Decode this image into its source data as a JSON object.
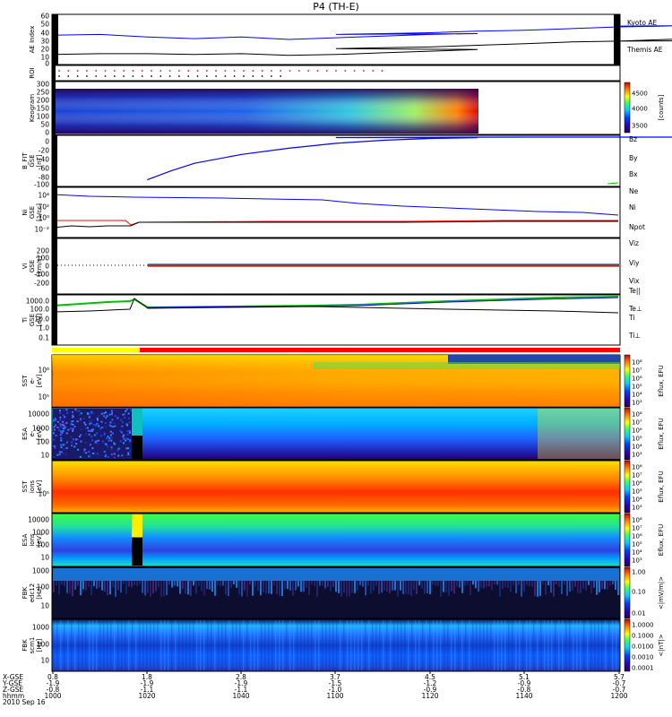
{
  "title": "P4 (TH-E)",
  "colors": {
    "blue": "#0000ff",
    "red": "#ff0000",
    "green": "#00c000",
    "black": "#000000",
    "purple": "#7b2a7b",
    "yellow": "#ffff00"
  },
  "chart_data": [
    {
      "panel": "ae",
      "type": "line",
      "ylabel": "AE Index",
      "yticks": [
        "60",
        "50",
        "40",
        "30",
        "20",
        "10",
        "0"
      ],
      "ylim": [
        0,
        60
      ],
      "series": [
        {
          "name": "Kyoto AE",
          "color": "#0000ff",
          "x": [
            1000,
            1010,
            1020,
            1030,
            1040,
            1050,
            1060,
            1070,
            1080,
            1090,
            1100,
            1110,
            1120,
            1130,
            1140,
            1150,
            1160,
            1170,
            1180,
            1190,
            1195,
            1200
          ],
          "values": [
            35,
            36,
            33,
            31,
            33,
            30,
            32,
            34,
            36,
            37,
            36,
            37,
            38,
            40,
            41,
            43,
            45,
            46,
            48,
            50,
            47,
            46
          ]
        },
        {
          "name": "Themis AE",
          "color": "#000000",
          "x": [
            1000,
            1010,
            1020,
            1030,
            1040,
            1050,
            1060,
            1070,
            1080,
            1090,
            1100,
            1110,
            1120,
            1130,
            1140,
            1150,
            1160,
            1170,
            1180,
            1190,
            1195,
            1200
          ],
          "values": [
            12,
            13,
            13,
            12,
            13,
            11,
            12,
            14,
            16,
            18,
            19,
            20,
            21,
            23,
            25,
            27,
            28,
            30,
            32,
            34,
            29,
            28
          ]
        }
      ]
    },
    {
      "panel": "roi",
      "type": "scatter",
      "ylabel": "ROI"
    },
    {
      "panel": "keogram",
      "type": "heatmap",
      "ylabel": "Keogram",
      "yticks": [
        "300",
        "250",
        "200",
        "150",
        "100",
        "50",
        "0"
      ],
      "colorbar_ticks": [
        "4500",
        "4000",
        "3500"
      ],
      "colorbar_unit": "[counts]"
    },
    {
      "panel": "bfield",
      "type": "line",
      "ylabel": "B_FIT\nGSE\n[nT]",
      "yticks": [
        "0",
        "-20",
        "-40",
        "-60",
        "-80",
        "-100"
      ],
      "ylim": [
        -110,
        5
      ],
      "series": [
        {
          "name": "Bz",
          "color": "#ff0000"
        },
        {
          "name": "By",
          "color": "#00c000"
        },
        {
          "name": "Bx",
          "color": "#0000ff",
          "x": [
            1020,
            1025,
            1030,
            1040,
            1050,
            1060,
            1070,
            1080,
            1090,
            1100,
            1120,
            1140,
            1160,
            1180,
            1200
          ],
          "values": [
            -95,
            -75,
            -58,
            -38,
            -24,
            -13,
            -6,
            -2,
            -0.5,
            0,
            0.5,
            1,
            1,
            1,
            1
          ]
        }
      ]
    },
    {
      "panel": "density",
      "type": "line",
      "ylabel": "Ni\nGSE\n[1/cc]",
      "yticks": [
        "10⁴",
        "10²",
        "10⁰",
        "10⁻²"
      ],
      "series": [
        {
          "name": "Ne",
          "color": "#ff0000"
        },
        {
          "name": "Ni",
          "color": "#000000"
        },
        {
          "name": "Npot",
          "color": "#0000ff"
        }
      ]
    },
    {
      "panel": "velocity",
      "type": "line",
      "ylabel": "Vi\nGSE\n[km/s]",
      "yticks": [
        "200",
        "100",
        "0",
        "-100",
        "-200"
      ],
      "ylim": [
        -300,
        250
      ],
      "series": [
        {
          "name": "Viz",
          "color": "#ff0000"
        },
        {
          "name": "Viy",
          "color": "#00c000"
        },
        {
          "name": "Vix",
          "color": "#0000ff"
        }
      ]
    },
    {
      "panel": "temperature",
      "type": "line",
      "ylabel": "Ti\nGSE\n[eV]",
      "yticks": [
        "1000.0",
        "100.0",
        "10.0",
        "1.0",
        "0.1"
      ],
      "series": [
        {
          "name": "Te||",
          "color": "#000000"
        },
        {
          "name": "Te⊥",
          "color": "#ff0000"
        },
        {
          "name": "Ti",
          "color": "#00c000"
        },
        {
          "name": "Ti⊥",
          "color": "#0000ff"
        }
      ]
    },
    {
      "panel": "sst_e",
      "type": "heatmap",
      "ylabel": "SST\ne-\n[eV]",
      "yticks": [
        "10⁶",
        "10⁵"
      ],
      "colorbar_ticks": [
        "10⁸",
        "10⁷",
        "10⁶",
        "10⁵",
        "10⁴",
        "10³"
      ],
      "colorbar_unit": "Eflux, EFU"
    },
    {
      "panel": "esa_e",
      "type": "heatmap",
      "ylabel": "ESA\ne-\n[eV]",
      "yticks": [
        "10000",
        "1000",
        "100",
        "10"
      ],
      "colorbar_ticks": [
        "10⁸",
        "10⁷",
        "10⁶",
        "10⁵",
        "10⁴",
        "10³"
      ],
      "colorbar_unit": "Eflux, EFU"
    },
    {
      "panel": "sst_i",
      "type": "heatmap",
      "ylabel": "SST\nions\n[eV]",
      "yticks": [
        "10⁵"
      ],
      "colorbar_ticks": [
        "10⁸",
        "10⁷",
        "10⁶",
        "10⁵",
        "10⁴",
        "10³"
      ],
      "colorbar_unit": "Eflux, EFU"
    },
    {
      "panel": "esa_i",
      "type": "heatmap",
      "ylabel": "ESA\nions\n[eV]",
      "yticks": [
        "10000",
        "1000",
        "100",
        "10"
      ],
      "colorbar_ticks": [
        "10⁸",
        "10⁷",
        "10⁶",
        "10⁵",
        "10⁴",
        "10³"
      ],
      "colorbar_unit": "Eflux, EFU"
    },
    {
      "panel": "fbk_e",
      "type": "heatmap",
      "ylabel": "FBK\nedc12\n[Hz]",
      "yticks": [
        "1000",
        "100",
        "10"
      ],
      "colorbar_ticks": [
        "1.00",
        "0.10",
        "0.01"
      ],
      "colorbar_unit": "<|mV/m|>"
    },
    {
      "panel": "fbk_b",
      "type": "heatmap",
      "ylabel": "FBK\nscm1\n[Hz]",
      "yticks": [
        "1000",
        "100",
        "10"
      ],
      "colorbar_ticks": [
        "1.0000",
        "0.1000",
        "0.0100",
        "0.0010",
        "0.0001"
      ],
      "colorbar_unit": "<|nT|>"
    }
  ],
  "xaxis": {
    "row_labels": [
      "X-GSE",
      "Y-GSE",
      "Z-GSE",
      "hhmm",
      "2010 Sep 16"
    ],
    "columns": [
      {
        "x": "0.8",
        "y": "-1.9",
        "z": "-0.8",
        "t": "1000"
      },
      {
        "x": "1.8",
        "y": "-1.9",
        "z": "-1.1",
        "t": "1020"
      },
      {
        "x": "2.8",
        "y": "-1.9",
        "z": "-1.1",
        "t": "1040"
      },
      {
        "x": "3.7",
        "y": "-1.5",
        "z": "-1.0",
        "t": "1100"
      },
      {
        "x": "4.5",
        "y": "-1.2",
        "z": "-0.9",
        "t": "1120"
      },
      {
        "x": "5.1",
        "y": "-0.9",
        "z": "-0.8",
        "t": "1140"
      },
      {
        "x": "5.7",
        "y": "-0.7",
        "z": "-0.7",
        "t": "1200"
      }
    ]
  }
}
